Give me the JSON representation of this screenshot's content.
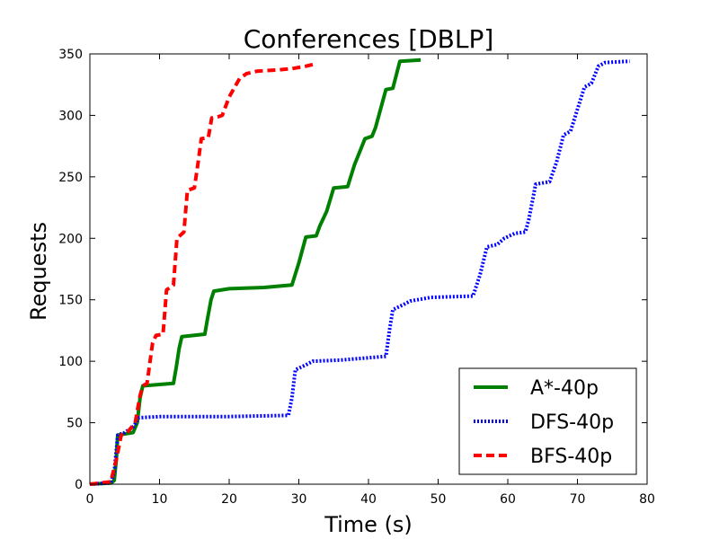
{
  "chart_data": {
    "type": "line",
    "title": "Conferences [DBLP]",
    "xlabel": "Time (s)",
    "ylabel": "Requests",
    "xlim": [
      0,
      80
    ],
    "ylim": [
      0,
      350
    ],
    "xticks": [
      0,
      10,
      20,
      30,
      40,
      50,
      60,
      70,
      80
    ],
    "yticks": [
      0,
      50,
      100,
      150,
      200,
      250,
      300,
      350
    ],
    "grid": false,
    "legend_position": "lower-right",
    "series": [
      {
        "name": "A*-40p",
        "color": "#008000",
        "style": "solid",
        "points": [
          [
            0,
            0
          ],
          [
            3,
            1
          ],
          [
            3.5,
            3
          ],
          [
            3.8,
            20
          ],
          [
            4,
            40
          ],
          [
            6.2,
            42
          ],
          [
            6.8,
            50
          ],
          [
            7.2,
            70
          ],
          [
            7.6,
            80
          ],
          [
            12,
            82
          ],
          [
            12.4,
            95
          ],
          [
            12.8,
            110
          ],
          [
            13.2,
            120
          ],
          [
            16.5,
            122
          ],
          [
            16.9,
            135
          ],
          [
            17.4,
            150
          ],
          [
            17.8,
            157
          ],
          [
            20,
            159
          ],
          [
            25,
            160
          ],
          [
            29,
            162
          ],
          [
            30,
            180
          ],
          [
            31,
            201
          ],
          [
            32.5,
            202
          ],
          [
            33,
            210
          ],
          [
            34,
            222
          ],
          [
            35,
            241
          ],
          [
            37,
            242
          ],
          [
            38,
            260
          ],
          [
            39.5,
            281
          ],
          [
            40.5,
            283
          ],
          [
            41,
            290
          ],
          [
            42.5,
            321
          ],
          [
            43.5,
            322
          ],
          [
            44.5,
            344
          ],
          [
            47.5,
            345
          ]
        ]
      },
      {
        "name": "DFS-40p",
        "color": "#0000ff",
        "style": "dotted",
        "points": [
          [
            0,
            0
          ],
          [
            3,
            1
          ],
          [
            3.5,
            10
          ],
          [
            4,
            40
          ],
          [
            5,
            42
          ],
          [
            6.3,
            47
          ],
          [
            7,
            54
          ],
          [
            10,
            55
          ],
          [
            20,
            55
          ],
          [
            28.5,
            56
          ],
          [
            29,
            70
          ],
          [
            29.5,
            93
          ],
          [
            31,
            97
          ],
          [
            32,
            100
          ],
          [
            36,
            101
          ],
          [
            42.5,
            104
          ],
          [
            43,
            125
          ],
          [
            43.5,
            142
          ],
          [
            45,
            146
          ],
          [
            46,
            149
          ],
          [
            49,
            152
          ],
          [
            55,
            153
          ],
          [
            56,
            170
          ],
          [
            57,
            193
          ],
          [
            58.5,
            195
          ],
          [
            59.5,
            200
          ],
          [
            61,
            204
          ],
          [
            62.5,
            205
          ],
          [
            63,
            215
          ],
          [
            64,
            244
          ],
          [
            66,
            246
          ],
          [
            67,
            262
          ],
          [
            68,
            284
          ],
          [
            69,
            287
          ],
          [
            70,
            305
          ],
          [
            71,
            323
          ],
          [
            72,
            326
          ],
          [
            73,
            340
          ],
          [
            74,
            343
          ],
          [
            77.5,
            344
          ]
        ]
      },
      {
        "name": "BFS-40p",
        "color": "#ff0000",
        "style": "dashed",
        "points": [
          [
            0,
            0
          ],
          [
            3,
            2
          ],
          [
            3.8,
            20
          ],
          [
            4.5,
            40
          ],
          [
            5.5,
            43
          ],
          [
            6.5,
            50
          ],
          [
            7.2,
            72
          ],
          [
            7.6,
            80
          ],
          [
            8.2,
            82
          ],
          [
            9,
            115
          ],
          [
            9.5,
            121
          ],
          [
            10.5,
            122
          ],
          [
            11,
            158
          ],
          [
            12,
            162
          ],
          [
            12.5,
            200
          ],
          [
            13.5,
            205
          ],
          [
            14,
            239
          ],
          [
            15,
            241
          ],
          [
            15.5,
            260
          ],
          [
            16,
            281
          ],
          [
            17,
            282
          ],
          [
            17.5,
            298
          ],
          [
            18.5,
            299
          ],
          [
            19,
            300
          ],
          [
            20,
            315
          ],
          [
            21.5,
            330
          ],
          [
            22.5,
            334
          ],
          [
            24,
            336
          ],
          [
            27,
            337
          ],
          [
            29,
            338
          ],
          [
            31,
            340
          ],
          [
            32.5,
            342
          ]
        ]
      }
    ]
  }
}
